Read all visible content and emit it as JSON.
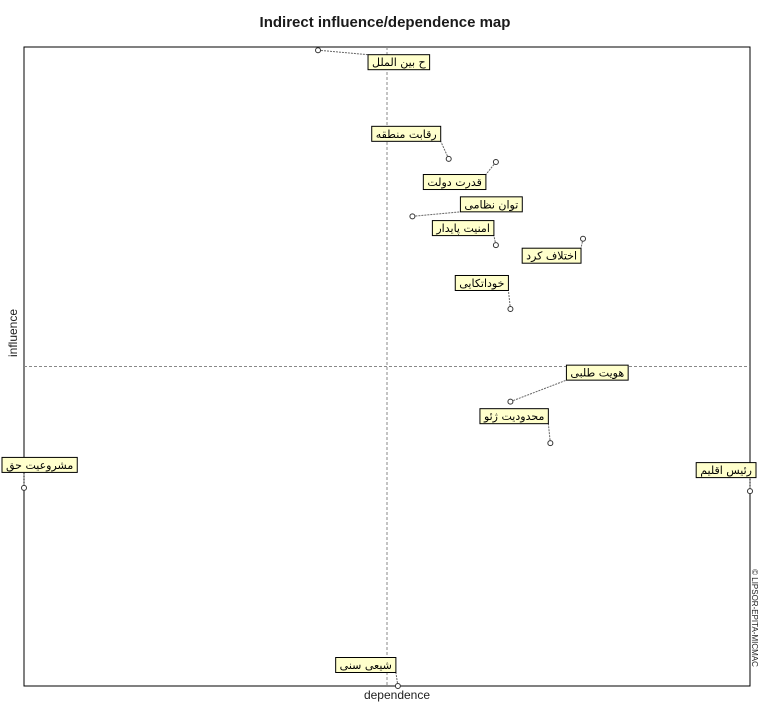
{
  "chart_data": {
    "type": "scatter",
    "title": "Indirect influence/dependence map",
    "xlabel": "dependence",
    "ylabel": "influence",
    "side_text": "© LIPSOR-EPITA-MICMAC",
    "xlim": [
      0,
      100
    ],
    "ylim": [
      0,
      100
    ],
    "grid": false,
    "quadrant_lines": {
      "x": 50,
      "y": 50
    },
    "points": [
      {
        "label": "ح بین الملل",
        "x": 40.5,
        "y": 99.5
      },
      {
        "label": "رقابت منطقه",
        "x": 58.5,
        "y": 82.5
      },
      {
        "label": "قدرت دولت",
        "x": 65,
        "y": 82
      },
      {
        "label": "توان نظامی",
        "x": 53.5,
        "y": 73.5
      },
      {
        "label": "امنیت پایدار",
        "x": 65,
        "y": 69
      },
      {
        "label": "اختلاف کرد",
        "x": 77,
        "y": 70
      },
      {
        "label": "خوداتکایی",
        "x": 67,
        "y": 59
      },
      {
        "label": "هویت طلبی",
        "x": 67,
        "y": 44.5
      },
      {
        "label": "محدودیت ژئو",
        "x": 72.5,
        "y": 38
      },
      {
        "label": "مشروعیت حق",
        "x": 0,
        "y": 31
      },
      {
        "label": "رئیس اقلیم",
        "x": 100,
        "y": 30.5
      },
      {
        "label": "شیعی سنی",
        "x": 51.5,
        "y": 0
      }
    ]
  },
  "colors": {
    "label_fill": "#ffffcc",
    "label_border": "#000000",
    "frame": "#000000",
    "quadrant_line": "#888888",
    "leader": "#666666"
  }
}
